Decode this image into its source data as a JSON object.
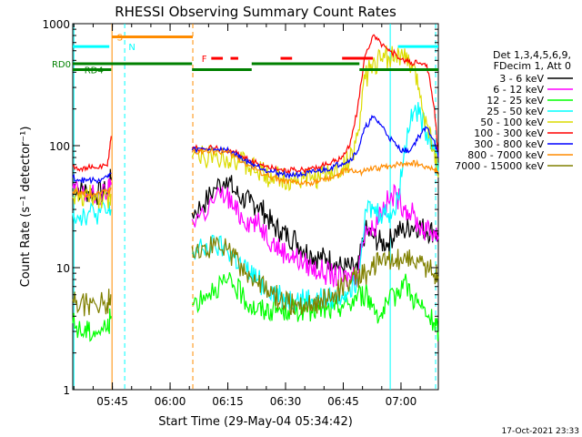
{
  "chart_data": {
    "type": "line",
    "title": "RHESSI Observing Summary Count Rates",
    "xlabel": "Start Time (29-May-04 05:34:42)",
    "ylabel": "Count Rate (s⁻¹ detector⁻¹)",
    "yscale": "log",
    "ylim": [
      1,
      1000
    ],
    "xlim_minutes": [
      0,
      95
    ],
    "x_ticks": [
      {
        "label": "05:45",
        "min": 10.3
      },
      {
        "label": "06:00",
        "min": 25.3
      },
      {
        "label": "06:15",
        "min": 40.3
      },
      {
        "label": "06:30",
        "min": 55.3
      },
      {
        "label": "06:45",
        "min": 70.3
      },
      {
        "label": "07:00",
        "min": 85.3
      }
    ],
    "y_ticks": [
      {
        "label": "1",
        "value": 1
      },
      {
        "label": "10",
        "value": 10
      },
      {
        "label": "100",
        "value": 100
      },
      {
        "label": "1000",
        "value": 1000
      }
    ],
    "legend_header": [
      "Det 1,3,4,5,6,9,",
      "FDecim 1, Att 0"
    ],
    "legend_position": "right",
    "series": [
      {
        "name": "3 - 6 keV",
        "color": "#000000",
        "x": [
          0,
          2,
          4,
          6,
          9,
          10,
          31,
          34,
          37,
          40,
          42,
          44,
          46,
          48,
          50,
          52,
          54,
          56,
          58,
          60,
          62,
          64,
          66,
          68,
          70,
          72,
          74,
          76,
          78,
          80,
          82,
          84,
          86,
          88,
          90,
          92,
          94,
          95
        ],
        "y": [
          48,
          43,
          42,
          40,
          42,
          55,
          28,
          33,
          45,
          55,
          42,
          37,
          34,
          33,
          28,
          22,
          20,
          18,
          17,
          14,
          13,
          12,
          12,
          11,
          10,
          10,
          9.5,
          20,
          18,
          16,
          16,
          20,
          20,
          22,
          22,
          20,
          20,
          18
        ]
      },
      {
        "name": "6 - 12 keV",
        "color": "#ff00ff",
        "x": [
          0,
          2,
          4,
          6,
          9,
          10,
          31,
          34,
          37,
          40,
          42,
          44,
          46,
          48,
          50,
          52,
          54,
          56,
          58,
          60,
          62,
          64,
          66,
          68,
          70,
          72,
          74,
          76,
          78,
          80,
          82,
          84,
          86,
          88,
          90,
          92,
          94,
          95
        ],
        "y": [
          45,
          40,
          40,
          38,
          40,
          50,
          25,
          28,
          37,
          40,
          30,
          26,
          24,
          23,
          20,
          16,
          14,
          13,
          12,
          11,
          10,
          9.5,
          9,
          8.5,
          8,
          8.5,
          9,
          22,
          20,
          30,
          35,
          40,
          32,
          28,
          22,
          20,
          20,
          18
        ]
      },
      {
        "name": "12 - 25 keV",
        "color": "#00ff00",
        "x": [
          0,
          2,
          4,
          6,
          9,
          10,
          31,
          34,
          37,
          40,
          42,
          44,
          46,
          48,
          50,
          52,
          54,
          56,
          58,
          60,
          62,
          64,
          66,
          68,
          70,
          72,
          74,
          76,
          78,
          80,
          82,
          84,
          86,
          88,
          90,
          92,
          94,
          95
        ],
        "y": [
          3.5,
          3,
          3,
          3,
          3.2,
          4,
          5,
          6,
          7,
          7.5,
          7,
          6,
          5,
          4.5,
          4.5,
          4.5,
          4.5,
          4.5,
          4.5,
          4.5,
          4.5,
          4.5,
          4.5,
          4.5,
          5,
          5,
          6,
          6,
          5,
          4,
          5,
          6,
          8,
          6,
          5,
          4,
          3.5,
          3
        ]
      },
      {
        "name": "25 - 50 keV",
        "color": "#00ffff",
        "x": [
          0,
          2,
          4,
          6,
          9,
          10,
          31,
          34,
          37,
          40,
          42,
          44,
          46,
          48,
          50,
          52,
          54,
          56,
          58,
          60,
          62,
          64,
          66,
          68,
          70,
          72,
          74,
          76,
          78,
          80,
          82,
          84,
          86,
          88,
          90,
          92,
          94,
          95
        ],
        "y": [
          28,
          27,
          28,
          28,
          28,
          30,
          13,
          14,
          15,
          14,
          12,
          10,
          9,
          8,
          7,
          6.5,
          6,
          5.5,
          5.5,
          5.5,
          5.5,
          5.5,
          5.5,
          5.5,
          6,
          7,
          8,
          30,
          30,
          28,
          28,
          30,
          80,
          200,
          180,
          130,
          100,
          60
        ]
      },
      {
        "name": "50 - 100 keV",
        "color": "#dcdc00",
        "x": [
          0,
          2,
          4,
          6,
          9,
          10,
          31,
          34,
          37,
          40,
          42,
          44,
          46,
          48,
          50,
          52,
          54,
          56,
          58,
          60,
          62,
          64,
          66,
          68,
          70,
          72,
          74,
          76,
          78,
          80,
          82,
          84,
          86,
          88,
          90,
          92,
          94,
          95
        ],
        "y": [
          38,
          37,
          38,
          38,
          38,
          40,
          80,
          82,
          82,
          82,
          78,
          72,
          66,
          62,
          58,
          56,
          54,
          53,
          53,
          53,
          54,
          56,
          58,
          60,
          66,
          75,
          120,
          350,
          480,
          500,
          540,
          560,
          520,
          450,
          300,
          150,
          90,
          55
        ]
      },
      {
        "name": "100 - 300 keV",
        "color": "#ff0000",
        "x": [
          0,
          2,
          4,
          6,
          9,
          10,
          31,
          34,
          37,
          40,
          42,
          44,
          46,
          48,
          50,
          52,
          54,
          56,
          58,
          60,
          62,
          64,
          66,
          68,
          70,
          72,
          74,
          76,
          78,
          80,
          82,
          84,
          86,
          88,
          90,
          92,
          94,
          95
        ],
        "y": [
          68,
          65,
          66,
          66,
          68,
          120,
          95,
          95,
          95,
          92,
          88,
          82,
          76,
          72,
          68,
          66,
          64,
          63,
          63,
          63,
          65,
          67,
          70,
          74,
          82,
          100,
          200,
          550,
          800,
          700,
          600,
          560,
          500,
          480,
          470,
          460,
          200,
          80
        ]
      },
      {
        "name": "300 - 800 keV",
        "color": "#0000ff",
        "x": [
          0,
          2,
          4,
          6,
          9,
          10,
          31,
          34,
          37,
          40,
          42,
          44,
          46,
          48,
          50,
          52,
          54,
          56,
          58,
          60,
          62,
          64,
          66,
          68,
          70,
          72,
          74,
          76,
          78,
          80,
          82,
          84,
          86,
          88,
          90,
          92,
          94,
          95
        ],
        "y": [
          55,
          52,
          52,
          52,
          55,
          60,
          92,
          94,
          94,
          92,
          86,
          78,
          72,
          68,
          64,
          61,
          59,
          58,
          58,
          58,
          60,
          62,
          64,
          68,
          72,
          76,
          90,
          140,
          170,
          150,
          120,
          100,
          90,
          95,
          120,
          140,
          110,
          80
        ]
      },
      {
        "name": "800 - 7000 keV",
        "color": "#ff8c00",
        "x": [
          0,
          2,
          4,
          6,
          9,
          10,
          31,
          34,
          37,
          40,
          42,
          44,
          46,
          48,
          50,
          52,
          54,
          56,
          58,
          60,
          62,
          64,
          66,
          68,
          70,
          72,
          74,
          76,
          78,
          80,
          82,
          84,
          86,
          88,
          90,
          92,
          94,
          95
        ],
        "y": [
          42,
          40,
          40,
          40,
          42,
          45,
          88,
          90,
          90,
          88,
          82,
          74,
          68,
          63,
          58,
          55,
          52,
          50,
          49,
          49,
          50,
          51,
          53,
          56,
          60,
          64,
          60,
          62,
          64,
          66,
          68,
          70,
          71,
          72,
          70,
          68,
          64,
          60
        ]
      },
      {
        "name": "7000 - 15000 keV",
        "color": "#808000",
        "x": [
          0,
          2,
          4,
          6,
          9,
          10,
          31,
          34,
          37,
          40,
          42,
          44,
          46,
          48,
          50,
          52,
          54,
          56,
          58,
          60,
          62,
          64,
          66,
          68,
          70,
          72,
          74,
          76,
          78,
          80,
          82,
          84,
          86,
          88,
          90,
          92,
          94,
          95
        ],
        "y": [
          5.5,
          5,
          5,
          5,
          5.2,
          6,
          15,
          15,
          15,
          14,
          12,
          10,
          8.5,
          7.5,
          6.5,
          6,
          5.5,
          5,
          5,
          5,
          5,
          5.2,
          5.5,
          6,
          7,
          8,
          8.5,
          9,
          10,
          11,
          11.5,
          12,
          12,
          12,
          11,
          10,
          9,
          8.5
        ]
      }
    ],
    "annotations": [
      {
        "label": "S",
        "color": "#ff8c00"
      },
      {
        "label": "N",
        "color": "#00ffff"
      },
      {
        "label": "F",
        "color": "#ff0000"
      },
      {
        "label": "RD0",
        "color": "#008000"
      },
      {
        "label": "RD4",
        "color": "#008000"
      }
    ],
    "flag_bars": {
      "saa": {
        "color": "#ff8c00",
        "y": 780,
        "spans": [
          [
            10.2,
            31.2
          ]
        ]
      },
      "night": {
        "color": "#00ffff",
        "y": 650,
        "spans": [
          [
            0,
            9.5
          ],
          [
            84.5,
            95
          ]
        ]
      },
      "flare": {
        "color": "#ff0000",
        "y": 520,
        "spans": [
          [
            36,
            39
          ],
          [
            41,
            43
          ],
          [
            54,
            57
          ],
          [
            70,
            78
          ]
        ]
      },
      "rd0": {
        "color": "#008000",
        "y": 470,
        "spans": [
          [
            0,
            31
          ],
          [
            46.5,
            74.5
          ]
        ]
      },
      "rd4": {
        "color": "#008000",
        "y": 420,
        "spans": [
          [
            0,
            10
          ],
          [
            31,
            46.5
          ],
          [
            74.5,
            95
          ]
        ]
      }
    },
    "vlines": [
      {
        "min": 0.3,
        "color": "#00ffff",
        "style": "solid"
      },
      {
        "min": 10.2,
        "color": "#ff8c00",
        "style": "solid"
      },
      {
        "min": 13.5,
        "color": "#00ffff",
        "style": "dashed"
      },
      {
        "min": 31.2,
        "color": "#ff8c00",
        "style": "dashed"
      },
      {
        "min": 82.5,
        "color": "#00ffff",
        "style": "solid"
      },
      {
        "min": 94.3,
        "color": "#00ffff",
        "style": "dashed"
      }
    ]
  },
  "footer": {
    "timestamp": "17-Oct-2021 23:33"
  }
}
